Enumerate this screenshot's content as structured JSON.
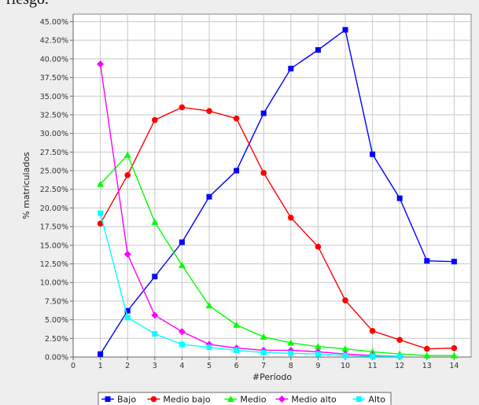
{
  "header": {
    "cut_text": "riesgo."
  },
  "chart_data": {
    "type": "line",
    "xlabel": "#Período",
    "ylabel": "% matriculados",
    "x_ticks": [
      0,
      1,
      2,
      3,
      4,
      5,
      6,
      7,
      8,
      9,
      10,
      11,
      12,
      13,
      14
    ],
    "xlim": [
      0,
      14.5
    ],
    "ylim": [
      0,
      46
    ],
    "y_ticks": [
      0,
      2.5,
      5,
      7.5,
      10,
      12.5,
      15,
      17.5,
      20,
      22.5,
      25,
      27.5,
      30,
      32.5,
      35,
      37.5,
      40,
      42.5,
      45
    ],
    "y_tick_labels": [
      "0.00%",
      "2.50%",
      "5.00%",
      "7.50%",
      "10.00%",
      "12.50%",
      "15.00%",
      "17.50%",
      "20.00%",
      "22.50%",
      "25.00%",
      "27.50%",
      "30.00%",
      "32.50%",
      "35.00%",
      "37.50%",
      "40.00%",
      "42.50%",
      "45.00%"
    ],
    "grid": true,
    "legend_position": "bottom",
    "series": [
      {
        "name": "Bajo",
        "color": "#0000ff",
        "marker": "square",
        "x": [
          1,
          2,
          3,
          4,
          5,
          6,
          7,
          8,
          9,
          10,
          11,
          12,
          13,
          14
        ],
        "values": [
          0.4,
          6.2,
          10.8,
          15.4,
          21.5,
          25.0,
          32.7,
          38.7,
          41.2,
          43.9,
          27.2,
          21.3,
          12.9,
          12.8
        ]
      },
      {
        "name": "Medio bajo",
        "color": "#ff0000",
        "marker": "circle",
        "x": [
          1,
          2,
          3,
          4,
          5,
          6,
          7,
          8,
          9,
          10,
          11,
          12,
          13,
          14
        ],
        "values": [
          17.9,
          24.4,
          31.8,
          33.5,
          33.0,
          32.0,
          24.7,
          18.7,
          14.8,
          7.6,
          3.5,
          2.3,
          1.1,
          1.2
        ]
      },
      {
        "name": "Medio",
        "color": "#00ff00",
        "marker": "triangle",
        "x": [
          1,
          2,
          3,
          4,
          5,
          6,
          7,
          8,
          9,
          10,
          11,
          12,
          13,
          14
        ],
        "values": [
          23.2,
          27.1,
          18.1,
          12.3,
          6.9,
          4.3,
          2.7,
          1.9,
          1.4,
          1.1,
          0.7,
          0.4,
          0.2,
          0.2
        ]
      },
      {
        "name": "Medio alto",
        "color": "#ff00ff",
        "marker": "diamond",
        "x": [
          1,
          2,
          3,
          4,
          5,
          6,
          7,
          8,
          9,
          10,
          11,
          12
        ],
        "values": [
          39.3,
          13.8,
          5.6,
          3.4,
          1.7,
          1.2,
          0.9,
          0.9,
          0.7,
          0.4,
          0.2,
          0.1
        ]
      },
      {
        "name": "Alto",
        "color": "#00ffff",
        "marker": "square",
        "x": [
          1,
          2,
          3,
          4,
          5,
          6,
          7,
          8,
          9,
          10,
          11,
          12
        ],
        "values": [
          19.3,
          5.3,
          3.1,
          1.7,
          1.3,
          0.9,
          0.6,
          0.5,
          0.4,
          0.2,
          0.1,
          0.1
        ]
      }
    ]
  }
}
